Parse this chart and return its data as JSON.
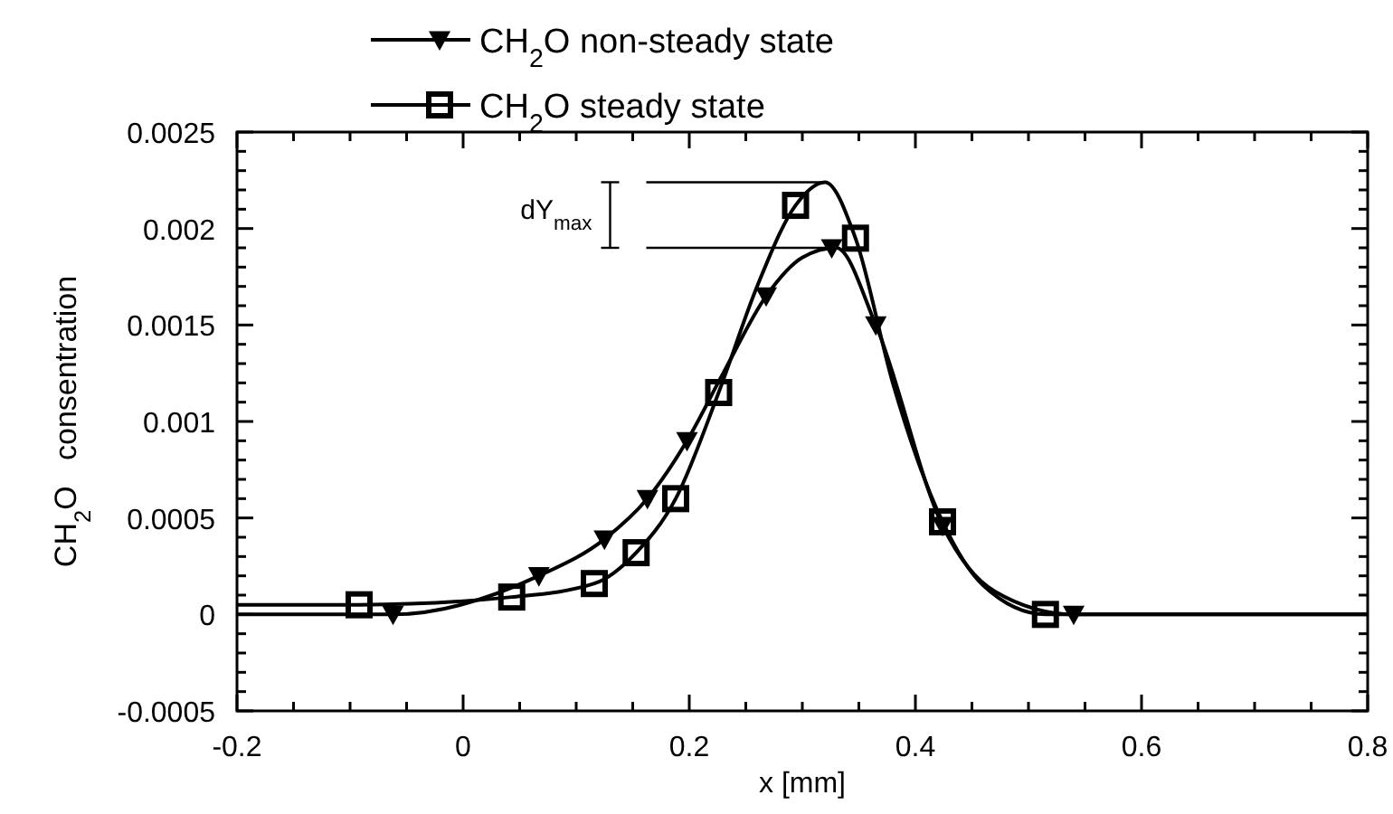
{
  "chart_data": {
    "type": "line",
    "xlabel": "x [mm]",
    "ylabel": "CH$_{2}$O   consentration",
    "xlim": [
      -0.2,
      0.8
    ],
    "ylim": [
      -0.0005,
      0.0025
    ],
    "xticks": [
      -0.2,
      {
        "value": -0.15,
        "label": null
      },
      {
        "value": -0.1,
        "label": null
      },
      {
        "value": -0.05,
        "label": null
      },
      0,
      {
        "value": 0.05,
        "label": null
      },
      {
        "value": 0.1,
        "label": null
      },
      {
        "value": 0.15,
        "label": null
      },
      0.2,
      {
        "value": 0.25,
        "label": null
      },
      {
        "value": 0.3,
        "label": null
      },
      {
        "value": 0.35,
        "label": null
      },
      0.4,
      {
        "value": 0.45,
        "label": null
      },
      {
        "value": 0.5,
        "label": null
      },
      {
        "value": 0.55,
        "label": null
      },
      0.6,
      {
        "value": 0.65,
        "label": null
      },
      {
        "value": 0.7,
        "label": null
      },
      {
        "value": 0.75,
        "label": null
      },
      0.8
    ],
    "yticks": [
      -0.0005,
      {
        "value": -0.0004,
        "label": null
      },
      {
        "value": -0.0003,
        "label": null
      },
      {
        "value": -0.0002,
        "label": null
      },
      {
        "value": -0.0001,
        "label": null
      },
      0,
      {
        "value": 0.0001,
        "label": null
      },
      {
        "value": 0.0002,
        "label": null
      },
      {
        "value": 0.0003,
        "label": null
      },
      {
        "value": 0.0004,
        "label": null
      },
      0.0005,
      {
        "value": 0.0006,
        "label": null
      },
      {
        "value": 0.0007,
        "label": null
      },
      {
        "value": 0.0008,
        "label": null
      },
      {
        "value": 0.0009,
        "label": null
      },
      0.001,
      {
        "value": 0.0011,
        "label": null
      },
      {
        "value": 0.0012,
        "label": null
      },
      {
        "value": 0.0013,
        "label": null
      },
      {
        "value": 0.0014,
        "label": null
      },
      0.0015,
      {
        "value": 0.0016,
        "label": null
      },
      {
        "value": 0.0017,
        "label": null
      },
      {
        "value": 0.0018,
        "label": null
      },
      {
        "value": 0.0019,
        "label": null
      },
      0.002,
      {
        "value": 0.0021,
        "label": null
      },
      {
        "value": 0.0022,
        "label": null
      },
      {
        "value": 0.0023,
        "label": null
      },
      {
        "value": 0.0024,
        "label": null
      },
      0.0025
    ],
    "grid": false,
    "legend": "top left",
    "line_style": "solid",
    "annotations": [
      "dY$_{max}$"
    ],
    "series": [
      {
        "color": "#000000",
        "x": [
          -0.2,
          -0.062,
          0.067,
          0.125,
          0.163,
          0.198,
          0.23,
          0.268,
          0.3,
          0.33,
          0.365,
          0.424,
          0.47,
          0.54,
          0.6,
          0.8
        ],
        "values": [
          0,
          0,
          0.0002,
          0.00039,
          0.0006,
          0.0009,
          0.00125,
          0.00165,
          0.00185,
          0.0019,
          0.0015,
          0.00046,
          0.00012,
          0,
          0,
          0
        ]
      },
      {
        "color": "#000000",
        "x": [
          -0.2,
          -0.092,
          0.043,
          0.116,
          0.153,
          0.188,
          0.226,
          0.26,
          0.294,
          0.32,
          0.347,
          0.38,
          0.424,
          0.46,
          0.515,
          0.6,
          0.8
        ],
        "values": [
          5e-05,
          5e-05,
          9e-05,
          0.00016,
          0.00032,
          0.0006,
          0.00115,
          0.0017,
          0.00212,
          0.00224,
          0.00195,
          0.0012,
          0.00048,
          0.00015,
          0,
          0,
          0
        ]
      },
      {
        "type": "scatter",
        "name": "CH$_{2}$O non-steady state",
        "color": "#000000",
        "marker": "triangle",
        "x": [
          -0.062,
          0.067,
          0.125,
          0.163,
          0.198,
          0.268,
          0.326,
          0.365,
          0.424,
          0.54
        ],
        "values": [
          0,
          0.0002,
          0.00039,
          0.0006,
          0.0009,
          0.00165,
          0.0019,
          0.0015,
          0.00046,
          0
        ]
      },
      {
        "type": "scatter",
        "name": "CH$_{2}$O steady state",
        "color": "#000000",
        "marker": "square",
        "x": [
          -0.092,
          0.043,
          0.116,
          0.153,
          0.188,
          0.226,
          0.294,
          0.347,
          0.424,
          0.515
        ],
        "values": [
          5e-05,
          9e-05,
          0.00016,
          0.00032,
          0.0006,
          0.00115,
          0.00212,
          0.00195,
          0.00048,
          0
        ]
      }
    ]
  }
}
